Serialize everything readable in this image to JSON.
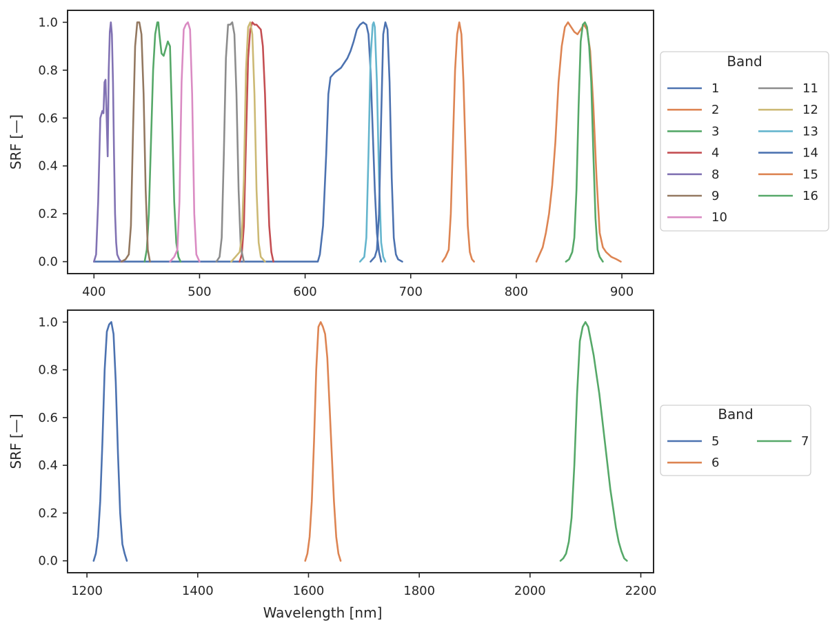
{
  "chart_data": [
    {
      "type": "line",
      "xlabel": "",
      "ylabel": "SRF [—]",
      "xlim": [
        375,
        930
      ],
      "ylim": [
        -0.05,
        1.05
      ],
      "xticks": [
        400,
        500,
        600,
        700,
        800,
        900
      ],
      "yticks": [
        0.0,
        0.2,
        0.4,
        0.6,
        0.8,
        1.0
      ],
      "ytick_labels": [
        "0.0",
        "0.2",
        "0.4",
        "0.6",
        "0.8",
        "1.0"
      ],
      "grid": false,
      "legend": {
        "title": "Band",
        "placement": "right",
        "columns": 2
      },
      "series": [
        {
          "name": "1",
          "color": "#4c72b0",
          "x": [
            400,
            403,
            405,
            407,
            409,
            410,
            412,
            413,
            414,
            416,
            418,
            420,
            422,
            424,
            426,
            428,
            430,
            433,
            436,
            440,
            443,
            446,
            450,
            453,
            456,
            460,
            463,
            466,
            470,
            473,
            476,
            480,
            485,
            490,
            495,
            500,
            505,
            510,
            515,
            520,
            525,
            530,
            535,
            540,
            545,
            550,
            555,
            560,
            565,
            570,
            575,
            580,
            585,
            590,
            595,
            600,
            605,
            610,
            612,
            614,
            617,
            620,
            622,
            624,
            626,
            628,
            631,
            634,
            637,
            640,
            643,
            646,
            649,
            652,
            655,
            658,
            660,
            662,
            664,
            666,
            668,
            670,
            672
          ],
          "y": [
            0.0,
            0.0,
            0.0,
            0.0,
            0.0,
            0.0,
            0.0,
            0.0,
            0.0,
            0.0,
            0.0,
            0.0,
            0.0,
            0.0,
            0.0,
            0.0,
            0.0,
            0.0,
            0.0,
            0.0,
            0.0,
            0.0,
            0.0,
            0.0,
            0.0,
            0.0,
            0.0,
            0.0,
            0.0,
            0.0,
            0.0,
            0.0,
            0.0,
            0.0,
            0.0,
            0.0,
            0.0,
            0.0,
            0.0,
            0.0,
            0.0,
            0.0,
            0.0,
            0.0,
            0.0,
            0.0,
            0.0,
            0.0,
            0.0,
            0.0,
            0.0,
            0.0,
            0.0,
            0.0,
            0.0,
            0.0,
            0.0,
            0.0,
            0.0,
            0.03,
            0.15,
            0.45,
            0.7,
            0.77,
            0.78,
            0.79,
            0.8,
            0.81,
            0.83,
            0.85,
            0.88,
            0.92,
            0.97,
            0.99,
            1.0,
            0.99,
            0.95,
            0.8,
            0.55,
            0.3,
            0.12,
            0.04,
            0.0
          ]
        },
        {
          "name": "2",
          "color": "#dd8452",
          "x": [
            730,
            733,
            736,
            738,
            740,
            742,
            744,
            746,
            748,
            750,
            752,
            754,
            756,
            758,
            760
          ],
          "y": [
            0.0,
            0.02,
            0.05,
            0.2,
            0.5,
            0.8,
            0.95,
            1.0,
            0.95,
            0.75,
            0.45,
            0.15,
            0.04,
            0.01,
            0.0
          ]
        },
        {
          "name": "3",
          "color": "#55a868",
          "x": [
            448,
            450,
            452,
            454,
            456,
            458,
            460,
            461,
            462,
            464,
            466,
            468,
            470,
            472,
            474,
            476,
            478,
            480,
            482
          ],
          "y": [
            0.0,
            0.05,
            0.2,
            0.5,
            0.8,
            0.95,
            1.0,
            1.0,
            0.95,
            0.87,
            0.86,
            0.89,
            0.92,
            0.9,
            0.6,
            0.25,
            0.08,
            0.02,
            0.0
          ]
        },
        {
          "name": "4",
          "color": "#c44e52",
          "x": [
            538,
            540,
            542,
            544,
            546,
            548,
            550,
            552,
            554,
            556,
            558,
            560,
            562,
            564,
            566,
            568,
            570
          ],
          "y": [
            0.0,
            0.03,
            0.15,
            0.5,
            0.85,
            0.97,
            1.0,
            0.99,
            0.99,
            0.98,
            0.97,
            0.9,
            0.7,
            0.4,
            0.15,
            0.04,
            0.0
          ]
        },
        {
          "name": "8",
          "color": "#8172b3",
          "x": [
            400,
            402,
            404,
            406,
            408,
            409,
            410,
            411,
            412,
            413,
            414,
            415,
            416,
            417,
            418,
            419,
            420,
            421,
            422,
            424,
            426,
            428
          ],
          "y": [
            0.0,
            0.03,
            0.25,
            0.6,
            0.63,
            0.62,
            0.75,
            0.76,
            0.6,
            0.44,
            0.8,
            0.96,
            1.0,
            0.95,
            0.75,
            0.45,
            0.2,
            0.08,
            0.03,
            0.01,
            0.0,
            0.0
          ]
        },
        {
          "name": "9",
          "color": "#937860",
          "x": [
            426,
            430,
            433,
            435,
            437,
            439,
            441,
            443,
            445,
            447,
            449,
            451,
            453
          ],
          "y": [
            0.0,
            0.01,
            0.03,
            0.15,
            0.55,
            0.9,
            1.0,
            1.0,
            0.95,
            0.7,
            0.3,
            0.05,
            0.0
          ]
        },
        {
          "name": "10",
          "color": "#da8bc3",
          "x": [
            472,
            476,
            479,
            481,
            483,
            485,
            487,
            489,
            491,
            493,
            495,
            497,
            500
          ],
          "y": [
            0.0,
            0.02,
            0.05,
            0.25,
            0.75,
            0.97,
            0.99,
            1.0,
            0.97,
            0.7,
            0.2,
            0.03,
            0.0
          ]
        },
        {
          "name": "11",
          "color": "#8c8c8c",
          "x": [
            516,
            519,
            521,
            523,
            525,
            527,
            529,
            531,
            533,
            535,
            537,
            539,
            542
          ],
          "y": [
            0.0,
            0.02,
            0.1,
            0.45,
            0.85,
            0.99,
            0.99,
            1.0,
            0.95,
            0.7,
            0.3,
            0.06,
            0.0
          ]
        },
        {
          "name": "12",
          "color": "#ccb974",
          "x": [
            530,
            534,
            538,
            540,
            542,
            544,
            546,
            548,
            550,
            552,
            554,
            556,
            558,
            562
          ],
          "y": [
            0.0,
            0.02,
            0.04,
            0.1,
            0.35,
            0.8,
            0.98,
            1.0,
            0.95,
            0.7,
            0.3,
            0.08,
            0.02,
            0.0
          ]
        },
        {
          "name": "13",
          "color": "#64b5cd",
          "x": [
            652,
            656,
            658,
            660,
            662,
            664,
            665,
            666,
            668,
            670,
            672,
            674,
            676
          ],
          "y": [
            0.0,
            0.02,
            0.1,
            0.45,
            0.85,
            0.99,
            1.0,
            0.98,
            0.75,
            0.35,
            0.08,
            0.02,
            0.0
          ]
        },
        {
          "name": "14",
          "color": "#4c72b0",
          "x": [
            662,
            666,
            668,
            670,
            672,
            674,
            676,
            678,
            680,
            682,
            684,
            686,
            688,
            692
          ],
          "y": [
            0.0,
            0.02,
            0.05,
            0.2,
            0.6,
            0.95,
            1.0,
            0.97,
            0.75,
            0.35,
            0.1,
            0.03,
            0.01,
            0.0
          ]
        },
        {
          "name": "15",
          "color": "#dd8452",
          "x": [
            819,
            822,
            825,
            828,
            831,
            834,
            837,
            840,
            843,
            846,
            849,
            852,
            855,
            858,
            861,
            864,
            867,
            870,
            873,
            876,
            879,
            882,
            885,
            890,
            895,
            899
          ],
          "y": [
            0.0,
            0.03,
            0.06,
            0.12,
            0.2,
            0.32,
            0.5,
            0.75,
            0.9,
            0.98,
            1.0,
            0.98,
            0.96,
            0.95,
            0.97,
            0.99,
            0.97,
            0.88,
            0.65,
            0.35,
            0.12,
            0.06,
            0.04,
            0.02,
            0.01,
            0.0
          ]
        },
        {
          "name": "16",
          "color": "#55a868",
          "x": [
            847,
            850,
            853,
            855,
            857,
            859,
            861,
            863,
            865,
            867,
            869,
            871,
            873,
            875,
            877,
            879,
            882
          ],
          "y": [
            0.0,
            0.01,
            0.04,
            0.1,
            0.3,
            0.65,
            0.92,
            0.99,
            1.0,
            0.98,
            0.9,
            0.75,
            0.45,
            0.18,
            0.05,
            0.02,
            0.0
          ]
        }
      ]
    },
    {
      "type": "line",
      "xlabel": "Wavelength [nm]",
      "ylabel": "SRF [—]",
      "xlim": [
        1165,
        2223
      ],
      "ylim": [
        -0.05,
        1.05
      ],
      "xticks": [
        1200,
        1400,
        1600,
        1800,
        2000,
        2200
      ],
      "yticks": [
        0.0,
        0.2,
        0.4,
        0.6,
        0.8,
        1.0
      ],
      "ytick_labels": [
        "0.0",
        "0.2",
        "0.4",
        "0.6",
        "0.8",
        "1.0"
      ],
      "grid": false,
      "legend": {
        "title": "Band",
        "placement": "right",
        "columns": 2
      },
      "series": [
        {
          "name": "5",
          "color": "#4c72b0",
          "x": [
            1212,
            1216,
            1220,
            1224,
            1228,
            1232,
            1236,
            1240,
            1244,
            1248,
            1252,
            1256,
            1260,
            1264,
            1268,
            1272
          ],
          "y": [
            0.0,
            0.03,
            0.1,
            0.25,
            0.5,
            0.8,
            0.96,
            0.99,
            1.0,
            0.95,
            0.75,
            0.45,
            0.2,
            0.07,
            0.03,
            0.0
          ]
        },
        {
          "name": "6",
          "color": "#dd8452",
          "x": [
            1594,
            1598,
            1602,
            1606,
            1610,
            1614,
            1618,
            1622,
            1626,
            1630,
            1634,
            1638,
            1642,
            1646,
            1650,
            1654,
            1658
          ],
          "y": [
            0.0,
            0.03,
            0.1,
            0.25,
            0.5,
            0.8,
            0.98,
            1.0,
            0.98,
            0.95,
            0.85,
            0.65,
            0.45,
            0.25,
            0.1,
            0.03,
            0.0
          ]
        },
        {
          "name": "7",
          "color": "#55a868",
          "x": [
            2055,
            2060,
            2065,
            2070,
            2075,
            2080,
            2085,
            2090,
            2095,
            2100,
            2105,
            2110,
            2115,
            2120,
            2125,
            2130,
            2135,
            2140,
            2145,
            2150,
            2155,
            2160,
            2165,
            2170,
            2175
          ],
          "y": [
            0.0,
            0.01,
            0.03,
            0.08,
            0.18,
            0.4,
            0.7,
            0.92,
            0.98,
            1.0,
            0.98,
            0.92,
            0.86,
            0.78,
            0.7,
            0.6,
            0.5,
            0.4,
            0.3,
            0.22,
            0.14,
            0.08,
            0.04,
            0.01,
            0.0
          ]
        }
      ]
    }
  ]
}
